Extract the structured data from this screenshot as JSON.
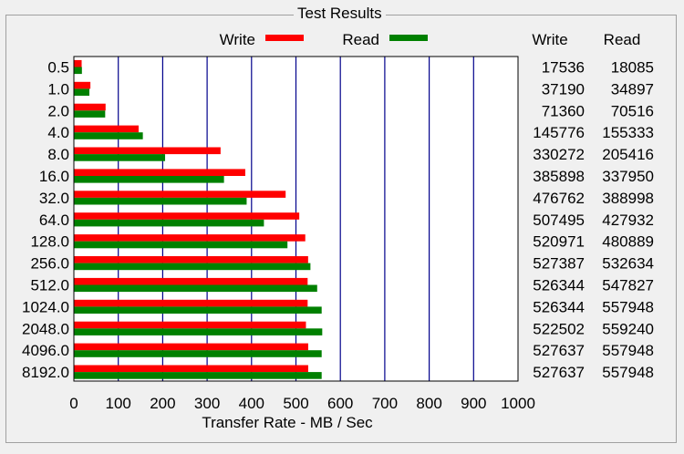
{
  "group_title": "Test Results",
  "legend": {
    "write_label": "Write",
    "read_label": "Read"
  },
  "columns": {
    "write_header": "Write",
    "read_header": "Read"
  },
  "colors": {
    "write": "#ff0000",
    "read": "#008000",
    "grid": "#00008b",
    "plot_bg": "#ffffff"
  },
  "chart_data": {
    "type": "bar",
    "orientation": "horizontal",
    "xlabel": "Transfer Rate - MB / Sec",
    "xlim": [
      0,
      1000
    ],
    "xticks": [
      0,
      100,
      200,
      300,
      400,
      500,
      600,
      700,
      800,
      900,
      1000
    ],
    "grid": true,
    "legend_position": "top",
    "categories": [
      "0.5",
      "1.0",
      "2.0",
      "4.0",
      "8.0",
      "16.0",
      "32.0",
      "64.0",
      "128.0",
      "256.0",
      "512.0",
      "1024.0",
      "2048.0",
      "4096.0",
      "8192.0"
    ],
    "series": [
      {
        "name": "Write",
        "values": [
          17.5,
          37.2,
          71.4,
          145.8,
          330.3,
          385.9,
          476.8,
          507.5,
          521.0,
          527.4,
          526.3,
          526.3,
          522.5,
          527.6,
          527.6
        ]
      },
      {
        "name": "Read",
        "values": [
          18.1,
          34.9,
          70.5,
          155.3,
          205.4,
          338.0,
          389.0,
          427.9,
          480.9,
          532.6,
          547.8,
          557.9,
          559.2,
          557.9,
          557.9
        ]
      }
    ],
    "table": {
      "write": [
        "17536",
        "37190",
        "71360",
        "145776",
        "330272",
        "385898",
        "476762",
        "507495",
        "520971",
        "527387",
        "526344",
        "526344",
        "522502",
        "527637",
        "527637"
      ],
      "read": [
        "18085",
        "34897",
        "70516",
        "155333",
        "205416",
        "337950",
        "388998",
        "427932",
        "480889",
        "532634",
        "547827",
        "557948",
        "559240",
        "557948",
        "557948"
      ]
    }
  }
}
